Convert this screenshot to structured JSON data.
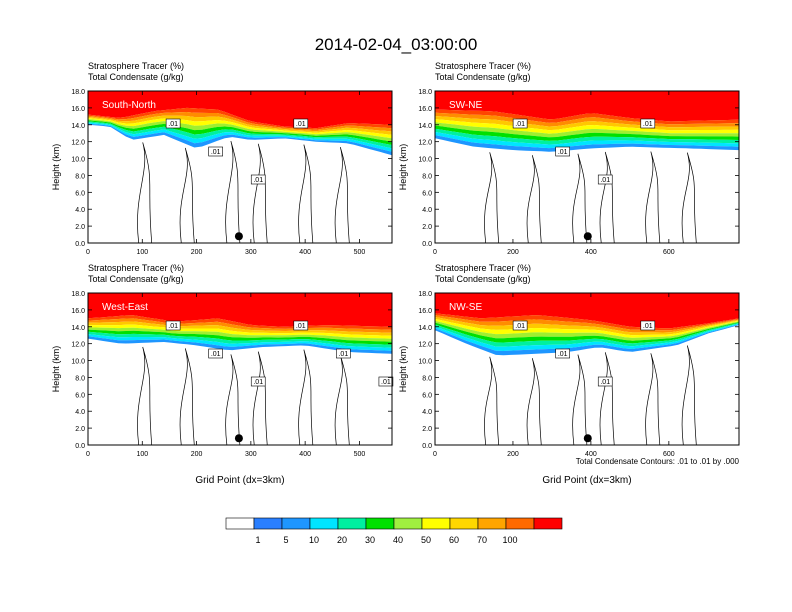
{
  "title": "2014-02-04_03:00:00",
  "footnote": "Total Condensate Contours: .01 to .01 by .000",
  "chart_data": [
    {
      "type": "heatmap",
      "panel_label": "South-North",
      "subtitle_line1": "Stratosphere Tracer   (%)",
      "subtitle_line2": "Total Condensate   (g/kg)",
      "ylabel": "Height (km)",
      "xlabel": "",
      "xlim": [
        0,
        560
      ],
      "ylim": [
        0,
        18
      ],
      "xticks": [
        0,
        100,
        200,
        300,
        400,
        500
      ],
      "yticks": [
        "0.0",
        "2.0",
        "4.0",
        "6.0",
        "8.0",
        "10.0",
        "12.0",
        "14.0",
        "16.0",
        "18.0"
      ],
      "tracer_top_profile": [
        [
          0,
          15.2
        ],
        [
          60,
          14.8
        ],
        [
          120,
          15.6
        ],
        [
          180,
          16.0
        ],
        [
          240,
          15.8
        ],
        [
          300,
          14.4
        ],
        [
          360,
          13.8
        ],
        [
          420,
          13.6
        ],
        [
          480,
          14.2
        ],
        [
          560,
          14.0
        ]
      ],
      "tracer_bottom_profile": [
        [
          0,
          14.0
        ],
        [
          40,
          13.8
        ],
        [
          80,
          12.2
        ],
        [
          140,
          12.8
        ],
        [
          200,
          11.2
        ],
        [
          260,
          12.6
        ],
        [
          300,
          12.2
        ],
        [
          360,
          12.4
        ],
        [
          420,
          12.0
        ],
        [
          480,
          11.8
        ],
        [
          560,
          10.4
        ]
      ],
      "contour_labels": [
        ".01",
        ".01",
        ".01",
        ".01"
      ],
      "marker_x": 278
    },
    {
      "type": "heatmap",
      "panel_label": "SW-NE",
      "subtitle_line1": "Stratosphere Tracer   (%)",
      "subtitle_line2": "Total Condensate   (g/kg)",
      "ylabel": "Height (km)",
      "xlabel": "",
      "xlim": [
        0,
        780
      ],
      "ylim": [
        0,
        18
      ],
      "xticks": [
        0,
        200,
        400,
        600
      ],
      "yticks": [
        "0.0",
        "2.0",
        "4.0",
        "6.0",
        "8.0",
        "10.0",
        "12.0",
        "14.0",
        "16.0",
        "18.0"
      ],
      "tracer_top_profile": [
        [
          0,
          15.8
        ],
        [
          150,
          15.6
        ],
        [
          300,
          14.6
        ],
        [
          400,
          15.4
        ],
        [
          500,
          14.8
        ],
        [
          600,
          14.4
        ],
        [
          780,
          14.6
        ]
      ],
      "tracer_bottom_profile": [
        [
          0,
          12.4
        ],
        [
          100,
          11.4
        ],
        [
          200,
          11.0
        ],
        [
          300,
          10.8
        ],
        [
          400,
          11.2
        ],
        [
          500,
          11.4
        ],
        [
          650,
          11.2
        ],
        [
          780,
          11.0
        ]
      ],
      "contour_labels": [
        ".01",
        ".01",
        ".01",
        ".01"
      ],
      "marker_x": 392
    },
    {
      "type": "heatmap",
      "panel_label": "West-East",
      "subtitle_line1": "Stratosphere Tracer   (%)",
      "subtitle_line2": "Total Condensate   (g/kg)",
      "ylabel": "Height (km)",
      "xlabel": "Grid Point (dx=3km)",
      "xlim": [
        0,
        560
      ],
      "ylim": [
        0,
        18
      ],
      "xticks": [
        0,
        100,
        200,
        300,
        400,
        500
      ],
      "yticks": [
        "0.0",
        "2.0",
        "4.0",
        "6.0",
        "8.0",
        "10.0",
        "12.0",
        "14.0",
        "16.0",
        "18.0"
      ],
      "tracer_top_profile": [
        [
          0,
          15.0
        ],
        [
          80,
          15.4
        ],
        [
          160,
          14.6
        ],
        [
          240,
          15.0
        ],
        [
          300,
          14.2
        ],
        [
          360,
          14.0
        ],
        [
          440,
          14.2
        ],
        [
          560,
          14.0
        ]
      ],
      "tracer_bottom_profile": [
        [
          0,
          12.6
        ],
        [
          60,
          12.0
        ],
        [
          140,
          12.2
        ],
        [
          200,
          11.8
        ],
        [
          260,
          11.2
        ],
        [
          320,
          11.6
        ],
        [
          400,
          11.8
        ],
        [
          480,
          11.0
        ],
        [
          560,
          10.8
        ]
      ],
      "contour_labels": [
        ".01",
        ".01",
        ".01",
        ".01",
        ".01",
        ".01"
      ],
      "marker_x": 278
    },
    {
      "type": "heatmap",
      "panel_label": "NW-SE",
      "subtitle_line1": "Stratosphere Tracer   (%)",
      "subtitle_line2": "Total Condensate   (g/kg)",
      "ylabel": "Height (km)",
      "xlabel": "Grid Point (dx=3km)",
      "xlim": [
        0,
        780
      ],
      "ylim": [
        0,
        18
      ],
      "xticks": [
        0,
        200,
        400,
        600
      ],
      "yticks": [
        "0.0",
        "2.0",
        "4.0",
        "6.0",
        "8.0",
        "10.0",
        "12.0",
        "14.0",
        "16.0",
        "18.0"
      ],
      "tracer_top_profile": [
        [
          0,
          15.6
        ],
        [
          120,
          15.0
        ],
        [
          260,
          15.4
        ],
        [
          400,
          14.8
        ],
        [
          500,
          14.0
        ],
        [
          600,
          13.8
        ],
        [
          700,
          14.4
        ],
        [
          780,
          15.0
        ]
      ],
      "tracer_bottom_profile": [
        [
          0,
          13.6
        ],
        [
          80,
          12.0
        ],
        [
          160,
          10.6
        ],
        [
          260,
          10.8
        ],
        [
          340,
          11.0
        ],
        [
          420,
          11.6
        ],
        [
          500,
          11.0
        ],
        [
          620,
          11.8
        ],
        [
          700,
          13.2
        ],
        [
          780,
          14.2
        ]
      ],
      "contour_labels": [
        ".01",
        ".01",
        ".01",
        ".01"
      ],
      "marker_x": 392
    }
  ],
  "colorbar": {
    "labels": [
      "1",
      "5",
      "10",
      "20",
      "30",
      "40",
      "50",
      "60",
      "70",
      "100"
    ],
    "colors": [
      "#ffffff",
      "#2a7fff",
      "#1e96ff",
      "#00e5ff",
      "#00f0a0",
      "#00e000",
      "#a0f040",
      "#ffff00",
      "#ffd700",
      "#ffa500",
      "#ff6a00",
      "#ff0000"
    ]
  }
}
